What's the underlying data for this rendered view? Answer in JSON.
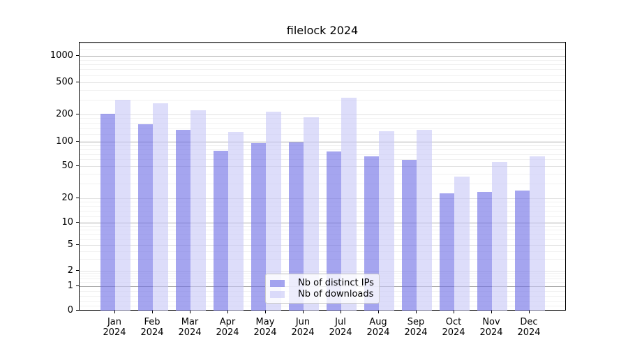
{
  "title": "filelock 2024",
  "chart_data": {
    "type": "bar",
    "title": "filelock 2024",
    "categories": [
      "Jan 2024",
      "Feb 2024",
      "Mar 2024",
      "Apr 2024",
      "May 2024",
      "Jun 2024",
      "Jul 2024",
      "Aug 2024",
      "Sep 2024",
      "Oct 2024",
      "Nov 2024",
      "Dec 2024"
    ],
    "series": [
      {
        "name": "Nb of distinct IPs",
        "color": "rgba(109,109,229,0.62)",
        "values": [
          205,
          157,
          135,
          78,
          96,
          98,
          76,
          66,
          60,
          23,
          24,
          25
        ]
      },
      {
        "name": "Nb of downloads",
        "color": "rgba(200,200,247,0.62)",
        "values": [
          302,
          275,
          225,
          129,
          218,
          187,
          322,
          131,
          135,
          37,
          56,
          66
        ]
      }
    ],
    "xlabel": "",
    "ylabel": "",
    "yscale": "symlog",
    "y_ticks": [
      1000,
      500,
      200,
      100,
      50,
      20,
      10,
      5,
      2,
      1,
      0
    ],
    "ylim": [
      0,
      1400
    ],
    "grid": true,
    "legend_position": "lower center"
  },
  "legend": {
    "items": [
      {
        "label": "Nb of distinct IPs",
        "color": "rgba(109,109,229,0.62)"
      },
      {
        "label": "Nb of downloads",
        "color": "rgba(200,200,247,0.62)"
      }
    ]
  }
}
